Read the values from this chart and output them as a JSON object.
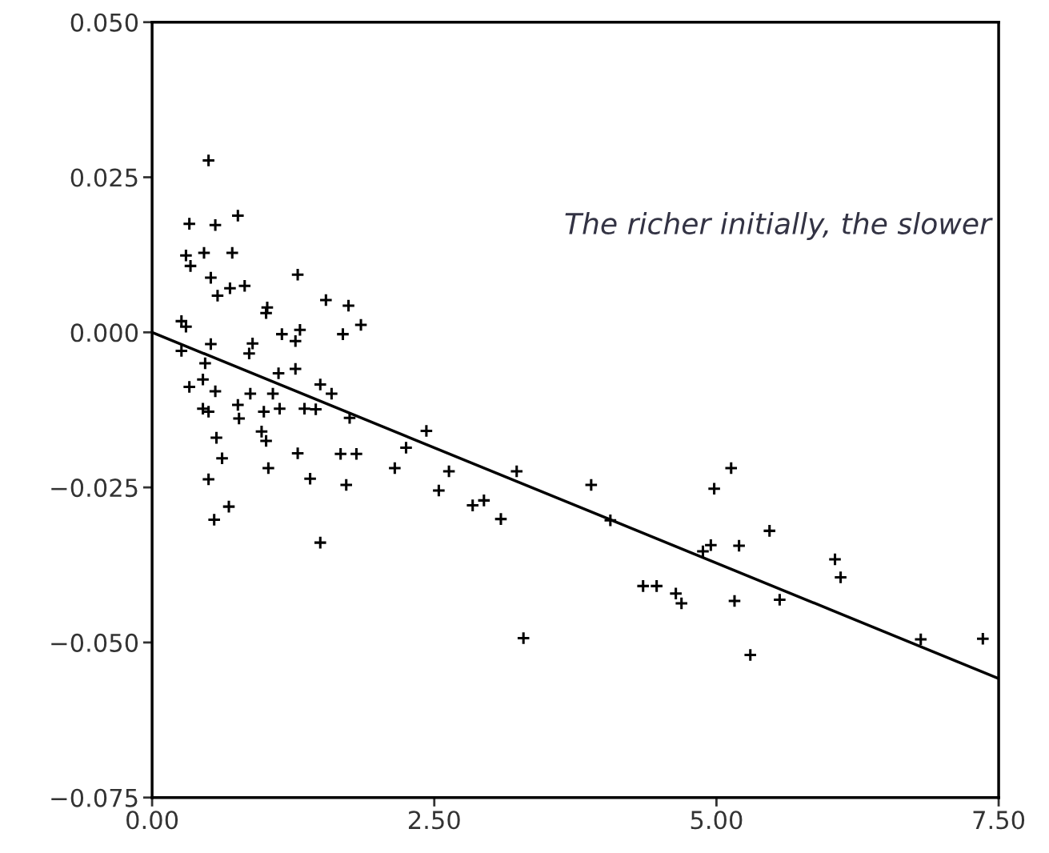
{
  "chart_data": {
    "type": "scatter",
    "marker": "cross",
    "grid": false,
    "legend": false,
    "xlim": [
      0,
      7.5
    ],
    "ylim": [
      -0.075,
      0.05
    ],
    "xticks": [
      {
        "value": 0,
        "label": "0.00"
      },
      {
        "value": 2.5,
        "label": "2.50"
      },
      {
        "value": 5,
        "label": "5.00"
      },
      {
        "value": 7.5,
        "label": "7.50"
      }
    ],
    "yticks": [
      {
        "value": -0.075,
        "label": "−0.075"
      },
      {
        "value": -0.05,
        "label": "−0.050"
      },
      {
        "value": -0.025,
        "label": "−0.025"
      },
      {
        "value": 0,
        "label": "0.000"
      },
      {
        "value": 0.025,
        "label": "0.025"
      },
      {
        "value": 0.05,
        "label": "0.050"
      }
    ],
    "annotations": [
      "The richer initially, the slower"
    ],
    "series": [
      {
        "color": "#000000",
        "x": [
          0.5,
          0.33,
          0.56,
          0.76,
          0.3,
          0.46,
          0.71,
          0.34,
          0.52,
          1.29,
          0.58,
          0.69,
          0.82,
          1.54,
          1.02,
          1.01,
          1.74,
          1.85,
          0.26,
          0.3,
          1.15,
          1.31,
          1.27,
          1.69,
          0.26,
          0.52,
          0.89,
          0.86,
          0.47,
          0.45,
          0.33,
          0.56,
          0.87,
          1.07,
          1.12,
          1.27,
          1.49,
          1.59,
          0.45,
          0.5,
          0.76,
          0.77,
          0.99,
          1.13,
          1.35,
          1.45,
          1.75,
          0.57,
          0.62,
          0.97,
          1.01,
          1.29,
          1.67,
          1.81,
          1.03,
          0.5,
          1.4,
          1.72,
          0.68,
          0.55,
          1.49,
          2.43,
          2.25,
          2.15,
          2.63,
          2.54,
          2.84,
          2.94,
          3.09,
          3.23,
          3.29,
          3.89,
          4.06,
          4.35,
          4.47,
          4.64,
          4.69,
          4.88,
          4.95,
          4.98,
          5.13,
          5.2,
          5.16,
          5.3,
          5.47,
          5.56,
          6.05,
          6.1,
          6.81,
          7.36
        ],
        "values": [
          0.0277,
          0.0175,
          0.0173,
          0.0188,
          0.0124,
          0.0128,
          0.0128,
          0.0107,
          0.0088,
          0.0093,
          0.0059,
          0.0071,
          0.0075,
          0.0052,
          0.004,
          0.0031,
          0.0043,
          0.0012,
          0.0018,
          0.0009,
          -0.0003,
          0.0004,
          -0.0014,
          -0.0003,
          -0.003,
          -0.0019,
          -0.0018,
          -0.0034,
          -0.005,
          -0.0076,
          -0.0088,
          -0.0095,
          -0.0099,
          -0.0099,
          -0.0066,
          -0.0059,
          -0.0084,
          -0.0099,
          -0.0123,
          -0.0128,
          -0.0117,
          -0.0139,
          -0.0128,
          -0.0123,
          -0.0123,
          -0.0124,
          -0.0138,
          -0.017,
          -0.0203,
          -0.016,
          -0.0175,
          -0.0195,
          -0.0196,
          -0.0196,
          -0.0219,
          -0.0237,
          -0.0236,
          -0.0246,
          -0.0281,
          -0.0302,
          -0.0339,
          -0.0159,
          -0.0186,
          -0.0219,
          -0.0224,
          -0.0255,
          -0.0279,
          -0.0271,
          -0.0301,
          -0.0224,
          -0.0493,
          -0.0246,
          -0.0303,
          -0.0409,
          -0.0409,
          -0.0421,
          -0.0437,
          -0.0353,
          -0.0343,
          -0.0252,
          -0.0219,
          -0.0344,
          -0.0433,
          -0.052,
          -0.032,
          -0.0431,
          -0.0366,
          -0.0395,
          -0.0495,
          -0.0494
        ]
      },
      {
        "type": "line",
        "color": "#000000",
        "line_style": "solid",
        "marker": "none",
        "x": [
          0,
          7.5
        ],
        "values": [
          0,
          -0.0558
        ]
      }
    ]
  }
}
